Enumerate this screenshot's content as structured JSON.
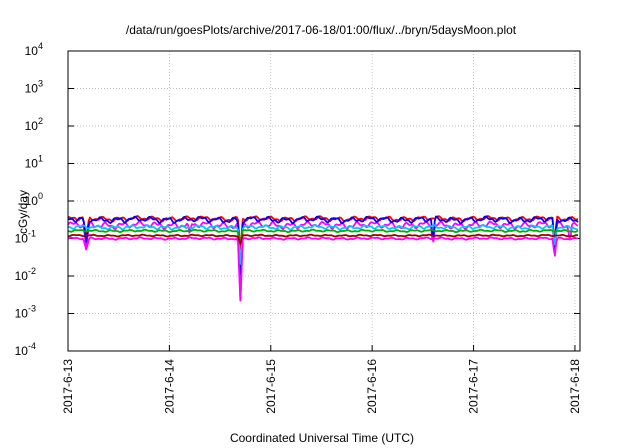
{
  "chart_data": {
    "type": "line",
    "title": "/data/run/goesPlots/archive/2017-06-18/01:00/flux/../bryn/5daysMoon.plot",
    "xlabel": "Coordinated Universal Time (UTC)",
    "ylabel": "cGy/day",
    "yscale": "log",
    "ylim": [
      0.0001,
      10000
    ],
    "xlim": [
      0,
      5.05
    ],
    "grid": true,
    "y_ticks": [
      {
        "base": "10",
        "exp": "4"
      },
      {
        "base": "10",
        "exp": "3"
      },
      {
        "base": "10",
        "exp": "2"
      },
      {
        "base": "10",
        "exp": "1"
      },
      {
        "base": "10",
        "exp": "0"
      },
      {
        "base": "10",
        "exp": "-1"
      },
      {
        "base": "10",
        "exp": "-2"
      },
      {
        "base": "10",
        "exp": "-3"
      },
      {
        "base": "10",
        "exp": "-4"
      }
    ],
    "x_ticks": [
      "2017-6-13",
      "2017-6-14",
      "2017-6-15",
      "2017-6-16",
      "2017-6-17",
      "2017-6-18"
    ],
    "x_days": [
      0,
      1,
      2,
      3,
      4,
      5
    ],
    "series": [
      {
        "color": "#ff00ff",
        "base": 0.23,
        "ripple": 0.25,
        "dips": [
          [
            0.18,
            0.06,
            0.03
          ],
          [
            1.2,
            0.13,
            0.02
          ],
          [
            1.7,
            0.002,
            0.025
          ],
          [
            3.6,
            0.06,
            0.02
          ],
          [
            4.8,
            0.03,
            0.02
          ],
          [
            4.95,
            0.08,
            0.02
          ]
        ]
      },
      {
        "color": "#ff0000",
        "base": 0.34,
        "ripple": 0.18,
        "dips": [
          [
            0.18,
            0.1,
            0.03
          ],
          [
            1.7,
            0.05,
            0.025
          ],
          [
            4.8,
            0.06,
            0.02
          ]
        ]
      },
      {
        "color": "#0000ff",
        "base": 0.32,
        "ripple": 0.22,
        "dips": [
          [
            0.18,
            0.08,
            0.03
          ],
          [
            1.7,
            0.01,
            0.025
          ],
          [
            3.6,
            0.08,
            0.02
          ],
          [
            4.8,
            0.04,
            0.02
          ]
        ]
      },
      {
        "color": "#00c8ff",
        "base": 0.2,
        "ripple": 0.15,
        "dips": [
          [
            1.7,
            0.02,
            0.025
          ],
          [
            4.8,
            0.06,
            0.02
          ]
        ]
      },
      {
        "color": "#00b000",
        "base": 0.16,
        "ripple": 0.08,
        "dips": [
          [
            1.7,
            0.08,
            0.025
          ]
        ]
      },
      {
        "color": "#a00000",
        "base": 0.12,
        "ripple": 0.06,
        "dips": [
          [
            1.7,
            0.07,
            0.025
          ]
        ]
      },
      {
        "color": "#ff00ff",
        "base": 0.1,
        "ripple": 0.08,
        "dips": [
          [
            0.18,
            0.05,
            0.03
          ],
          [
            1.7,
            0.002,
            0.025
          ],
          [
            4.8,
            0.03,
            0.02
          ]
        ]
      }
    ]
  }
}
